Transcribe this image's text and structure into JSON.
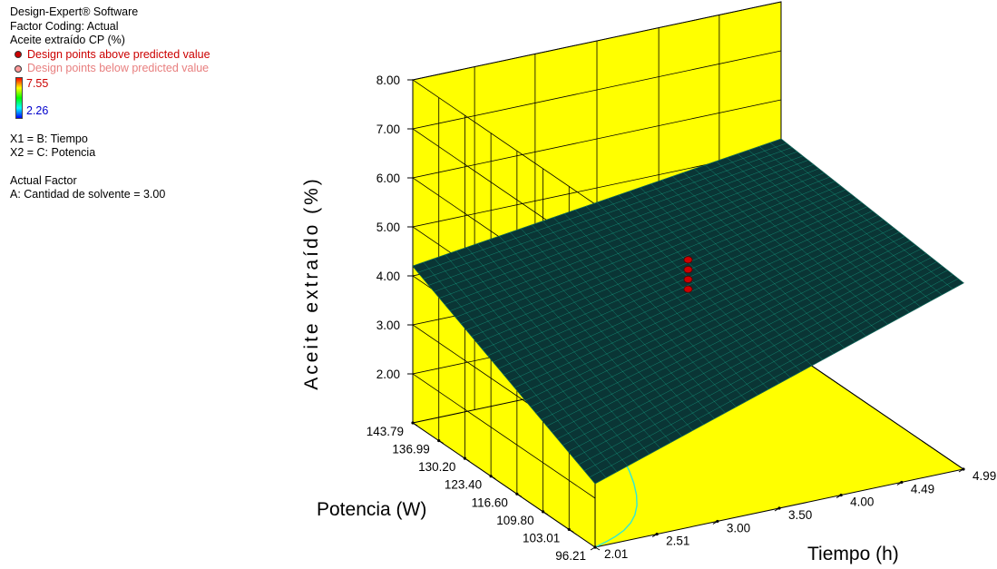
{
  "info": {
    "software": "Design-Expert® Software",
    "coding": "Factor Coding: Actual",
    "response": "Aceite extraído CP (%)",
    "legend_above": "Design points above predicted value",
    "legend_below": "Design points below predicted value",
    "scale_max": "7.55",
    "scale_min": "2.26",
    "x1": "X1 = B: Tiempo",
    "x2": "X2 = C: Potencia",
    "actual_factor_title": "Actual Factor",
    "actual_factor": "A: Cantidad de solvente = 3.00"
  },
  "colors": {
    "floor": "#ffff00",
    "surface": "#0a3535",
    "mesh": "#19d1a6",
    "contour": "#2ee8d8",
    "above_point": "#cc0000",
    "below_point": "#ff9a9a",
    "scale_max": "#cc0000",
    "scale_min": "#0000cc"
  },
  "chart_data": {
    "type": "surface3d",
    "title": "",
    "xlabel": "Tiempo (h)",
    "ylabel": "Potencia (W)",
    "zlabel": "Aceite extraído (%)",
    "x_ticks": [
      "2.01",
      "2.51",
      "3.00",
      "3.50",
      "4.00",
      "4.49",
      "4.99"
    ],
    "y_ticks": [
      "96.21",
      "103.01",
      "109.80",
      "116.60",
      "123.40",
      "130.20",
      "136.99",
      "143.79"
    ],
    "z_ticks": [
      "2.00",
      "3.00",
      "4.00",
      "5.00",
      "6.00",
      "7.00",
      "8.00"
    ],
    "x_range": [
      2.01,
      4.99
    ],
    "y_range": [
      96.21,
      143.79
    ],
    "z_range": [
      1.0,
      8.0
    ],
    "surface_corners": {
      "t2.01_p96.21": 2.3,
      "t4.99_p96.21": 4.8,
      "t2.01_p143.79": 4.2,
      "t4.99_p143.79": 5.2
    },
    "design_points": [
      {
        "tiempo": 3.5,
        "potencia": 120.0,
        "value": 4.8,
        "position": "above"
      },
      {
        "tiempo": 3.5,
        "potencia": 120.0,
        "value": 4.6,
        "position": "above"
      },
      {
        "tiempo": 3.5,
        "potencia": 120.0,
        "value": 4.4,
        "position": "above"
      },
      {
        "tiempo": 3.5,
        "potencia": 120.0,
        "value": 4.2,
        "position": "above"
      }
    ]
  }
}
